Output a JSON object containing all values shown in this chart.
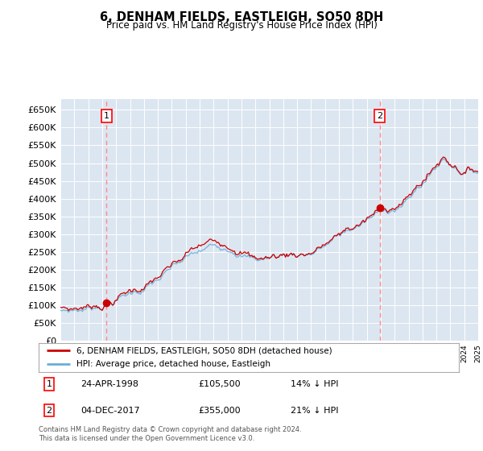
{
  "title": "6, DENHAM FIELDS, EASTLEIGH, SO50 8DH",
  "subtitle": "Price paid vs. HM Land Registry's House Price Index (HPI)",
  "legend_line1": "6, DENHAM FIELDS, EASTLEIGH, SO50 8DH (detached house)",
  "legend_line2": "HPI: Average price, detached house, Eastleigh",
  "annotation1_label": "1",
  "annotation1_date": "24-APR-1998",
  "annotation1_price": "£105,500",
  "annotation1_hpi": "14% ↓ HPI",
  "annotation2_label": "2",
  "annotation2_date": "04-DEC-2017",
  "annotation2_price": "£355,000",
  "annotation2_hpi": "21% ↓ HPI",
  "footnote": "Contains HM Land Registry data © Crown copyright and database right 2024.\nThis data is licensed under the Open Government Licence v3.0.",
  "ylim_min": 0,
  "ylim_max": 680000,
  "year_start": 1995,
  "year_end": 2025,
  "hpi_color": "#6baed6",
  "price_color": "#cc0000",
  "dashed_line_color": "#ff8888",
  "background_color": "#dce6f1",
  "purchase1_year": 1998.32,
  "purchase1_price": 105500,
  "purchase2_year": 2017.92,
  "purchase2_price": 355000
}
